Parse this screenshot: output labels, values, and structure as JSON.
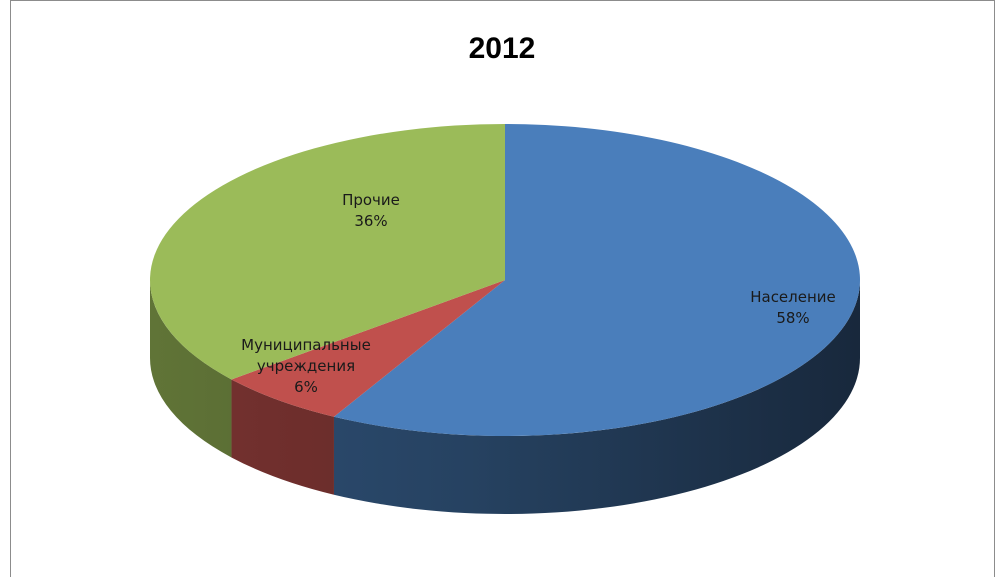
{
  "chart_data": {
    "type": "pie",
    "title": "2012",
    "slices": [
      {
        "label": "Население",
        "value": 58,
        "value_label": "58%",
        "color": "#4a7ebb"
      },
      {
        "label": "Муниципальные учреждения",
        "label_lines": [
          "Муниципальные",
          "учреждения"
        ],
        "value": 6,
        "value_label": "6%",
        "color": "#c0504d"
      },
      {
        "label": "Прочие",
        "value": 36,
        "value_label": "36%",
        "color": "#9bbb59"
      }
    ],
    "legend": "none",
    "style": "3d"
  }
}
